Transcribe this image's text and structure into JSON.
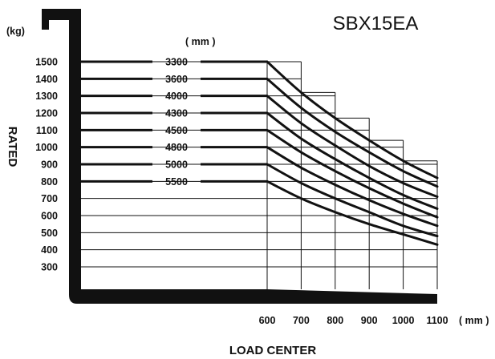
{
  "chart_data": {
    "type": "line",
    "title": "SBX15EA",
    "xlabel": "LOAD CENTER",
    "ylabel": "RATED",
    "y_unit": "(kg)",
    "x_unit": "( mm )",
    "series_unit": "( mm )",
    "x": [
      600,
      700,
      800,
      900,
      1000,
      1100
    ],
    "xlim": [
      600,
      1100
    ],
    "ylim": [
      300,
      1500
    ],
    "y_ticks": [
      1500,
      1400,
      1300,
      1200,
      1100,
      1000,
      900,
      800,
      700,
      600,
      500,
      400,
      300
    ],
    "grid": true,
    "series": [
      {
        "name": "3300",
        "values": [
          1500,
          1320,
          1170,
          1040,
          920,
          820
        ]
      },
      {
        "name": "3600",
        "values": [
          1400,
          1230,
          1090,
          970,
          860,
          770
        ]
      },
      {
        "name": "4000",
        "values": [
          1300,
          1140,
          1010,
          890,
          790,
          710
        ]
      },
      {
        "name": "4300",
        "values": [
          1200,
          1050,
          930,
          820,
          720,
          640
        ]
      },
      {
        "name": "4500",
        "values": [
          1100,
          970,
          860,
          760,
          670,
          590
        ]
      },
      {
        "name": "4800",
        "values": [
          1000,
          880,
          780,
          690,
          610,
          540
        ]
      },
      {
        "name": "5000",
        "values": [
          900,
          790,
          700,
          620,
          540,
          480
        ]
      },
      {
        "name": "5500",
        "values": [
          800,
          700,
          620,
          550,
          490,
          430
        ]
      }
    ]
  }
}
